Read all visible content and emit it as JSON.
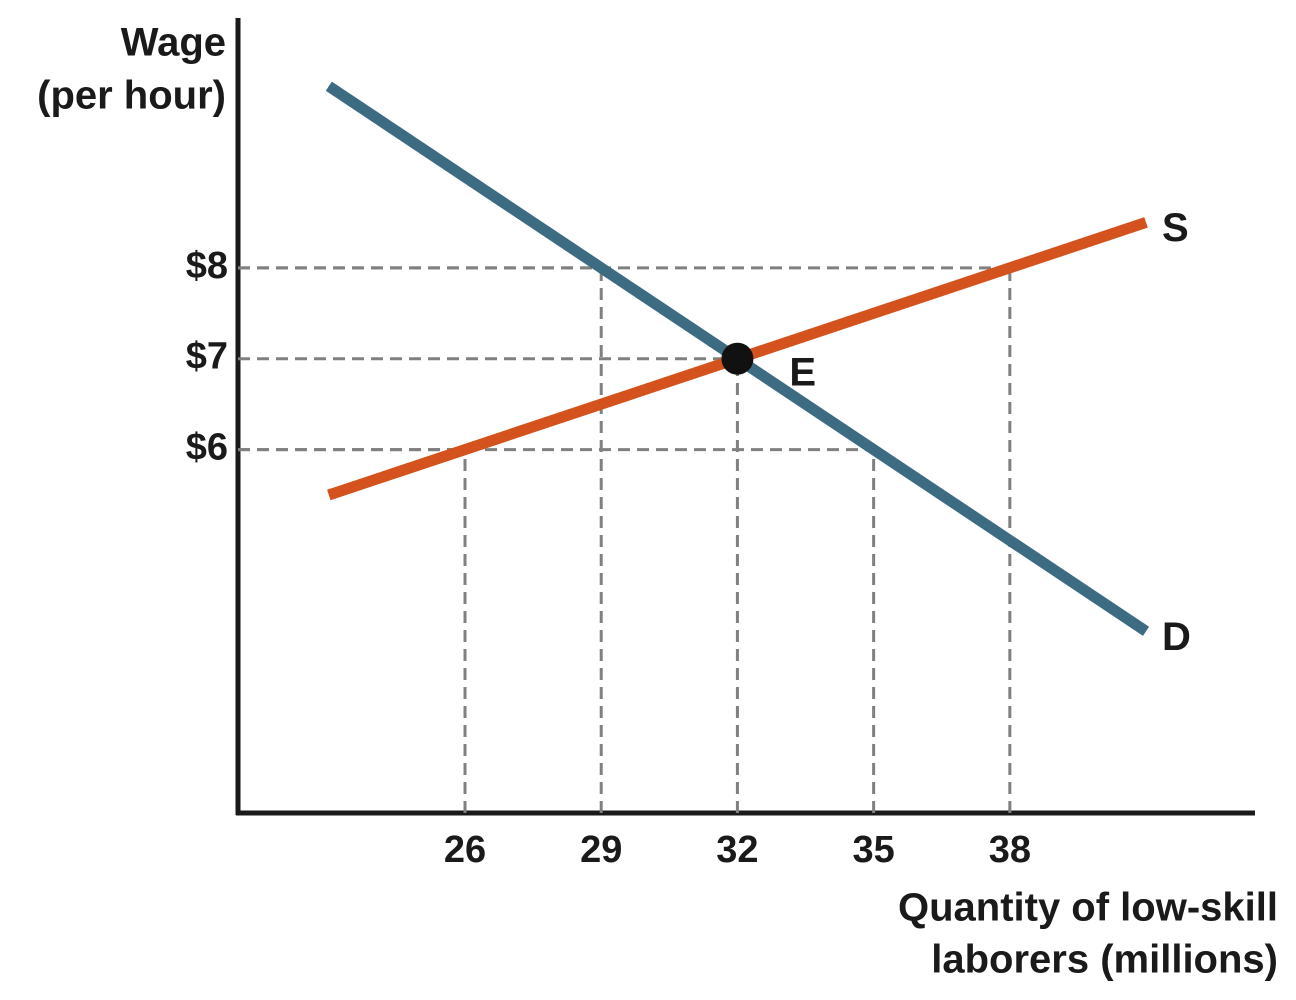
{
  "chart_data": {
    "type": "line",
    "ylabel": [
      "Wage",
      "(per hour)"
    ],
    "xlabel": [
      "Quantity of low-skill",
      "laborers (millions)"
    ],
    "xlim": [
      21,
      43.4
    ],
    "ylim": [
      2,
      10.75
    ],
    "xticks": [
      26,
      29,
      32,
      35,
      38
    ],
    "yticks": [
      {
        "value": 6,
        "label": "$6"
      },
      {
        "value": 7,
        "label": "$7"
      },
      {
        "value": 8,
        "label": "$8"
      }
    ],
    "series": [
      {
        "name": "S",
        "color": "#d4521d",
        "x": [
          23,
          41
        ],
        "values": [
          5.5,
          8.5
        ]
      },
      {
        "name": "D",
        "color": "#3d6b82",
        "x": [
          23,
          41
        ],
        "values": [
          10,
          4
        ]
      }
    ],
    "guide_points": {
      "x": [
        26,
        29,
        32,
        35,
        38
      ],
      "y": [
        6,
        8,
        7,
        6,
        8
      ]
    },
    "equilibrium": {
      "label": "E",
      "x": 32,
      "y": 7
    }
  }
}
